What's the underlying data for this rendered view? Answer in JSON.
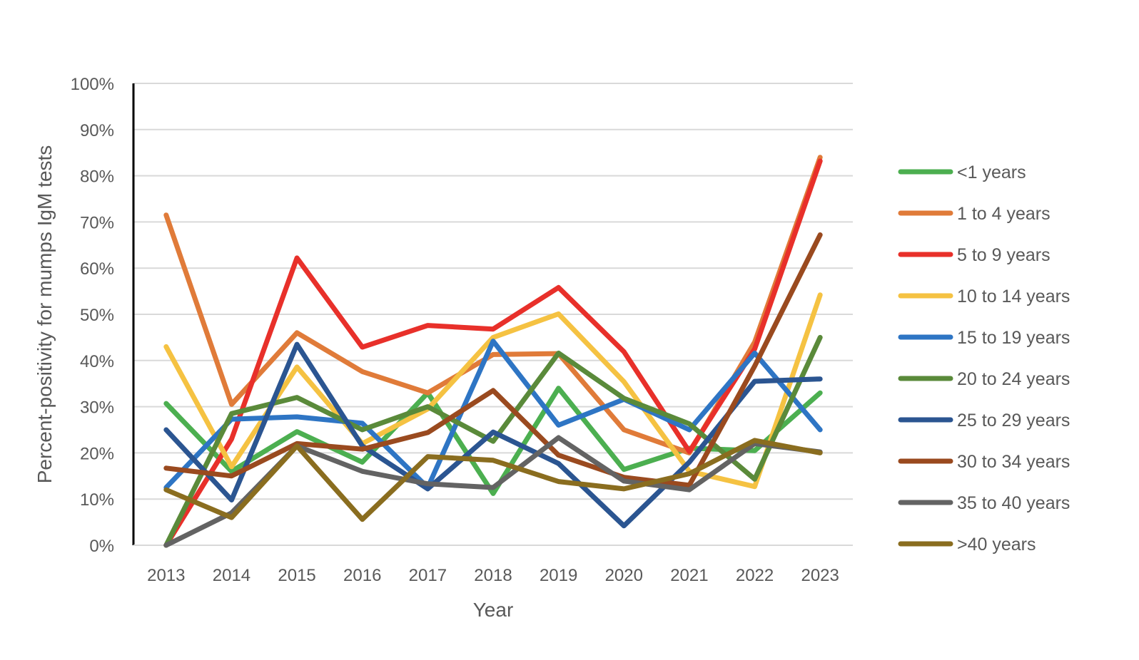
{
  "chart_data": {
    "type": "line",
    "title": "",
    "xlabel": "Year",
    "ylabel": "Percent-positivity for mumps IgM tests",
    "x": [
      "2013",
      "2014",
      "2015",
      "2016",
      "2017",
      "2018",
      "2019",
      "2020",
      "2021",
      "2022",
      "2023"
    ],
    "ylim": [
      0,
      100
    ],
    "yticks": [
      "0%",
      "10%",
      "20%",
      "30%",
      "40%",
      "50%",
      "60%",
      "70%",
      "80%",
      "90%",
      "100%"
    ],
    "grid": true,
    "legend_position": "right",
    "series": [
      {
        "name": "<1 years",
        "color": "#4caf50",
        "values": [
          30.7,
          16.0,
          24.6,
          18.0,
          33.0,
          11.2,
          34.0,
          16.4,
          21.0,
          20.5,
          33.0
        ]
      },
      {
        "name": "1 to 4 years",
        "color": "#e07b39",
        "values": [
          71.5,
          30.5,
          46.0,
          37.6,
          33.0,
          41.3,
          41.5,
          25.0,
          20.0,
          44.0,
          84.0
        ]
      },
      {
        "name": "5 to 9 years",
        "color": "#e8302a",
        "values": [
          0.0,
          23.0,
          62.2,
          42.9,
          47.6,
          46.8,
          55.8,
          41.9,
          20.3,
          42.5,
          83.2
        ]
      },
      {
        "name": "10 to 14 years",
        "color": "#f5c242",
        "values": [
          43.0,
          17.0,
          38.6,
          22.0,
          29.5,
          45.0,
          50.1,
          35.4,
          16.0,
          12.7,
          54.2
        ]
      },
      {
        "name": "15 to 19 years",
        "color": "#2e75c4",
        "values": [
          12.5,
          27.3,
          27.8,
          26.4,
          12.5,
          44.2,
          26.0,
          31.6,
          25.0,
          41.6,
          25.0
        ]
      },
      {
        "name": "20 to 24 years",
        "color": "#5a8a3a",
        "values": [
          0.0,
          28.5,
          32.0,
          25.0,
          30.0,
          22.5,
          41.6,
          31.8,
          26.3,
          14.3,
          45.0
        ]
      },
      {
        "name": "25 to 29 years",
        "color": "#2b5591",
        "values": [
          25.0,
          9.8,
          43.5,
          21.5,
          12.2,
          24.5,
          17.7,
          4.2,
          18.0,
          35.5,
          36.0
        ]
      },
      {
        "name": "30 to 34 years",
        "color": "#9a4a1f",
        "values": [
          16.7,
          15.0,
          22.0,
          20.8,
          24.4,
          33.5,
          19.5,
          14.7,
          13.0,
          38.8,
          67.2
        ]
      },
      {
        "name": "35 to 40 years",
        "color": "#636363",
        "values": [
          0.0,
          7.0,
          21.5,
          16.0,
          13.3,
          12.5,
          23.3,
          13.9,
          12.0,
          22.0,
          20.2
        ]
      },
      {
        "name": ">40 years",
        "color": "#8a6d1f",
        "values": [
          12.0,
          6.0,
          21.5,
          5.6,
          19.2,
          18.4,
          13.8,
          12.2,
          15.5,
          22.7,
          20.0
        ]
      }
    ]
  }
}
